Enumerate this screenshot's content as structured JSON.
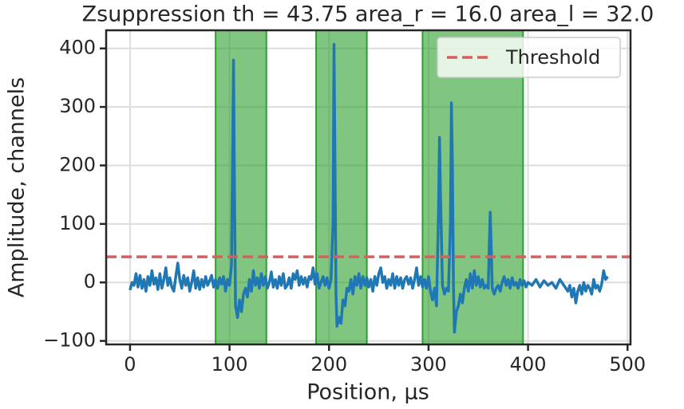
{
  "chart_data": {
    "type": "line",
    "title": "Zsuppression th = 43.75 area_r = 16.0 area_l = 32.0",
    "xlabel": "Position, µs",
    "ylabel": "Amplitude, channels",
    "color": "#1f77b4",
    "x": [
      0,
      2,
      4,
      6,
      8,
      10,
      12,
      14,
      16,
      18,
      20,
      22,
      24,
      26,
      28,
      30,
      32,
      34,
      36,
      38,
      40,
      42,
      44,
      46,
      48,
      50,
      52,
      54,
      56,
      58,
      60,
      62,
      64,
      66,
      68,
      70,
      72,
      74,
      76,
      78,
      80,
      82,
      84,
      86,
      88,
      90,
      92,
      94,
      96,
      98,
      100,
      102,
      104,
      105,
      106,
      108,
      110,
      112,
      114,
      116,
      118,
      120,
      122,
      124,
      126,
      128,
      130,
      132,
      134,
      136,
      138,
      140,
      142,
      144,
      146,
      148,
      150,
      152,
      154,
      156,
      158,
      160,
      162,
      164,
      166,
      168,
      170,
      172,
      174,
      176,
      178,
      180,
      182,
      184,
      186,
      188,
      190,
      192,
      194,
      196,
      198,
      200,
      202,
      204,
      205,
      206,
      207,
      208,
      210,
      212,
      214,
      216,
      218,
      220,
      222,
      224,
      226,
      228,
      230,
      232,
      234,
      236,
      238,
      240,
      242,
      244,
      246,
      248,
      250,
      252,
      254,
      256,
      258,
      260,
      262,
      264,
      266,
      268,
      270,
      272,
      274,
      276,
      278,
      280,
      282,
      284,
      286,
      288,
      290,
      292,
      294,
      296,
      298,
      300,
      302,
      304,
      306,
      308,
      310,
      311,
      312,
      314,
      316,
      318,
      320,
      322,
      323,
      324,
      325,
      326,
      328,
      330,
      332,
      334,
      336,
      338,
      340,
      342,
      344,
      346,
      348,
      350,
      352,
      354,
      356,
      358,
      360,
      361,
      362,
      363,
      364,
      366,
      368,
      370,
      372,
      374,
      376,
      378,
      380,
      382,
      384,
      386,
      388,
      390,
      392,
      394,
      396,
      398,
      400,
      404,
      408,
      412,
      416,
      420,
      424,
      428,
      432,
      436,
      440,
      442,
      444,
      446,
      448,
      450,
      452,
      454,
      456,
      458,
      460,
      462,
      464,
      466,
      468,
      470,
      472,
      474,
      476,
      478,
      480
    ],
    "values": [
      -13,
      0,
      -5,
      15,
      -8,
      12,
      -10,
      5,
      -15,
      10,
      -5,
      20,
      -3,
      8,
      -12,
      15,
      -10,
      5,
      25,
      -5,
      8,
      -8,
      -15,
      10,
      33,
      5,
      -10,
      12,
      -5,
      8,
      -15,
      0,
      20,
      -10,
      8,
      -12,
      5,
      -8,
      10,
      -5,
      3,
      12,
      -8,
      5,
      -10,
      8,
      -3,
      10,
      -15,
      5,
      -5,
      30,
      380,
      150,
      -40,
      -60,
      -30,
      -50,
      -20,
      -10,
      -25,
      5,
      -15,
      20,
      -5,
      8,
      -10,
      15,
      -5,
      10,
      -10,
      0,
      18,
      -8,
      5,
      -10,
      10,
      -5,
      15,
      -10,
      -5,
      8,
      -10,
      15,
      5,
      20,
      -5,
      10,
      -3,
      8,
      -8,
      10,
      5,
      25,
      -3,
      15,
      -10,
      0,
      10,
      -5,
      8,
      -10,
      5,
      100,
      407,
      200,
      -20,
      -75,
      -60,
      -70,
      -30,
      -40,
      -10,
      -15,
      5,
      -20,
      10,
      -5,
      15,
      -10,
      10,
      -5,
      8,
      -8,
      5,
      -15,
      10,
      -5,
      15,
      25,
      0,
      10,
      -10,
      5,
      -5,
      15,
      -10,
      10,
      -5,
      8,
      -10,
      5,
      10,
      -3,
      8,
      -10,
      5,
      25,
      -5,
      10,
      -8,
      5,
      -10,
      10,
      -15,
      -30,
      -10,
      -40,
      120,
      248,
      150,
      -5,
      -20,
      -10,
      -15,
      100,
      307,
      200,
      0,
      -85,
      -50,
      -40,
      -20,
      -35,
      -10,
      5,
      -15,
      15,
      -10,
      20,
      -5,
      10,
      -8,
      5,
      -10,
      -5,
      -10,
      60,
      120,
      60,
      -10,
      -20,
      -10,
      -5,
      -15,
      0,
      10,
      -5,
      5,
      -10,
      8,
      -5,
      0,
      -10,
      5,
      -5,
      3,
      -8,
      0,
      -5,
      5,
      -8,
      3,
      -5,
      0,
      -10,
      5,
      -5,
      -15,
      -5,
      -25,
      -10,
      -35,
      -15,
      -5,
      -20,
      0,
      -15,
      -5,
      -10,
      -20,
      5,
      -10,
      -5,
      -15,
      -3,
      20,
      5,
      10
    ],
    "spans": [
      [
        86,
        137
      ],
      [
        187,
        238
      ],
      [
        294,
        395
      ]
    ],
    "span_color": "#2ca02c",
    "threshold": {
      "name": "Threshold",
      "value": 43.75,
      "color": "#d65f5f"
    },
    "legend": "upper right",
    "grid": true,
    "xlim": [
      -24,
      503
    ],
    "ylim": [
      -106,
      431
    ],
    "xticks": [
      0,
      100,
      200,
      300,
      400,
      500
    ],
    "yticks": [
      {
        "value": -100,
        "label": "−100"
      },
      0,
      100,
      200,
      300,
      400
    ]
  }
}
